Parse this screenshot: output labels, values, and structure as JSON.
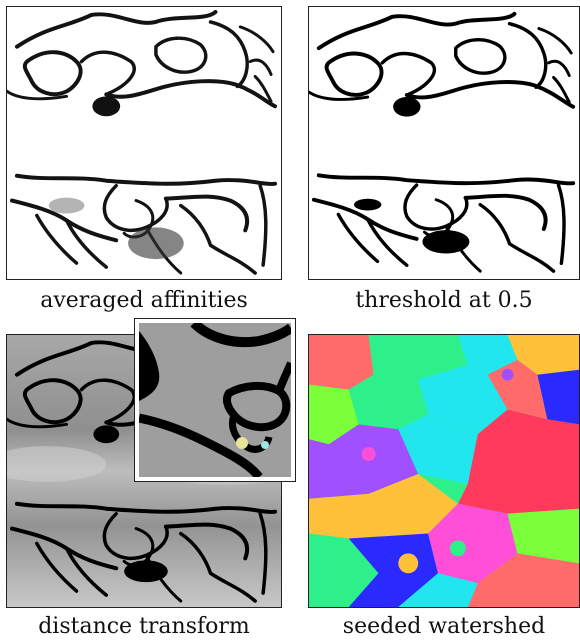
{
  "captions": {
    "top_left": "averaged affinities",
    "top_right": "threshold at 0.5",
    "bottom_left": "distance transform",
    "bottom_right": "seeded watershed"
  },
  "colors": {
    "membrane": "#000000",
    "background_gray": "#9a9a9a",
    "segment_palette": [
      "#ff6a6a",
      "#2ef08a",
      "#2a2aff",
      "#21e6ee",
      "#ff3a5c",
      "#a050ff",
      "#ffc13a",
      "#7bff3a",
      "#ff4fd8"
    ]
  }
}
